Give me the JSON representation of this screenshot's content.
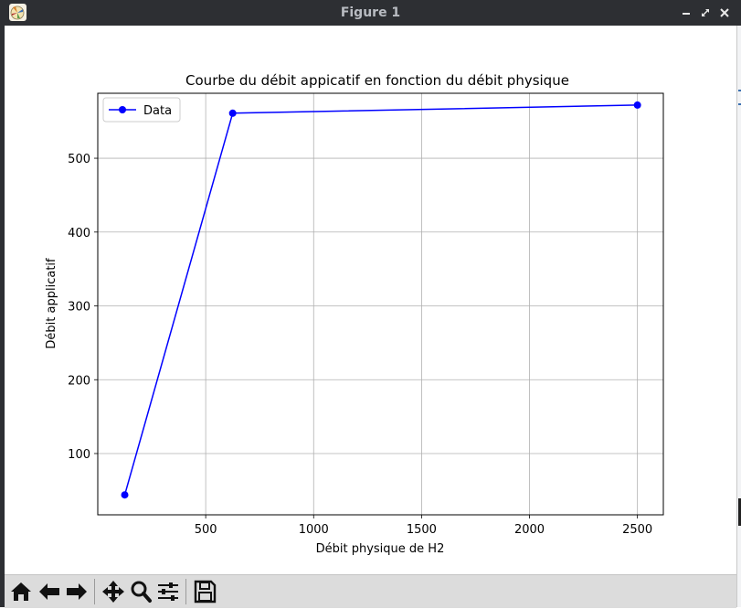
{
  "window": {
    "title": "Figure 1",
    "app_icon": "matplotlib-figure-icon",
    "controls": [
      "minimize-icon",
      "maximize-icon",
      "close-icon"
    ]
  },
  "chart_data": {
    "type": "line",
    "title": "Courbe du débit appicatif en fonction du débit physique",
    "xlabel": "Débit physique de H2",
    "ylabel": "Débit applicatif",
    "xlim": [
      0,
      2620
    ],
    "ylim": [
      17,
      588
    ],
    "xticks": [
      500,
      1000,
      1500,
      2000,
      2500
    ],
    "yticks": [
      100,
      200,
      300,
      400,
      500
    ],
    "grid": true,
    "legend_position": "upper-left",
    "series": [
      {
        "name": "Data",
        "color": "#0000ff",
        "marker": "circle",
        "x": [
          125,
          625,
          2500
        ],
        "y": [
          44,
          561,
          572
        ]
      }
    ]
  },
  "toolbar": {
    "buttons": [
      {
        "name": "home-button",
        "icon": "home-icon"
      },
      {
        "name": "back-button",
        "icon": "arrow-left-icon"
      },
      {
        "name": "forward-button",
        "icon": "arrow-right-icon"
      },
      {
        "name": "pan-button",
        "icon": "move-icon"
      },
      {
        "name": "zoom-button",
        "icon": "magnifier-icon"
      },
      {
        "name": "configure-subplots-button",
        "icon": "sliders-icon"
      },
      {
        "name": "save-button",
        "icon": "floppy-disk-icon"
      }
    ]
  }
}
